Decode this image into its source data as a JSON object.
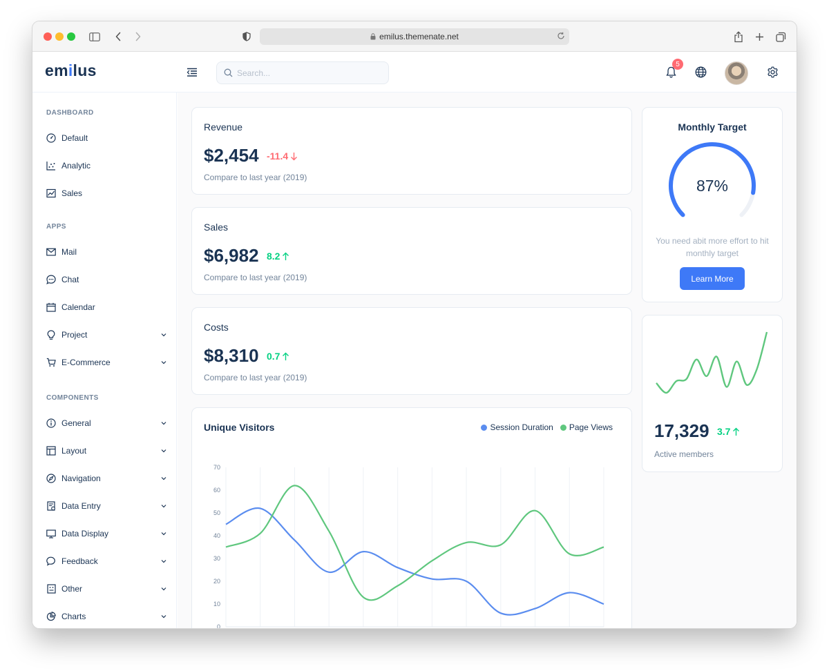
{
  "browser": {
    "url": "emilus.themenate.net"
  },
  "header": {
    "logo": "emilus",
    "search_placeholder": "Search...",
    "notification_count": "5",
    "icons": [
      "menu-fold-icon",
      "search-icon",
      "bell-icon",
      "globe-icon",
      "settings-icon"
    ]
  },
  "sidebar": {
    "groups": [
      {
        "title": "DASHBOARD",
        "items": [
          {
            "label": "Default",
            "icon": "dashboard-icon"
          },
          {
            "label": "Analytic",
            "icon": "dot-chart-icon"
          },
          {
            "label": "Sales",
            "icon": "line-chart-icon"
          }
        ]
      },
      {
        "title": "APPS",
        "items": [
          {
            "label": "Mail",
            "icon": "mail-icon"
          },
          {
            "label": "Chat",
            "icon": "message-icon"
          },
          {
            "label": "Calendar",
            "icon": "calendar-icon"
          },
          {
            "label": "Project",
            "icon": "bulb-icon"
          },
          {
            "label": "E-Commerce",
            "icon": "shopping-cart-icon"
          }
        ]
      },
      {
        "title": "COMPONENTS",
        "items": [
          {
            "label": "General",
            "icon": "info-circle-icon"
          },
          {
            "label": "Layout",
            "icon": "layout-icon"
          },
          {
            "label": "Navigation",
            "icon": "compass-icon"
          },
          {
            "label": "Data Entry",
            "icon": "file-done-icon"
          },
          {
            "label": "Data Display",
            "icon": "desktop-icon"
          },
          {
            "label": "Feedback",
            "icon": "comment-icon"
          },
          {
            "label": "Other",
            "icon": "robot-icon"
          },
          {
            "label": "Charts",
            "icon": "pie-chart-icon"
          }
        ]
      }
    ]
  },
  "stats": [
    {
      "title": "Revenue",
      "value": "$2,454",
      "change": "-11.4",
      "direction": "down",
      "subtitle": "Compare to last year (2019)"
    },
    {
      "title": "Sales",
      "value": "$6,982",
      "change": "8.2",
      "direction": "up",
      "subtitle": "Compare to last year (2019)"
    },
    {
      "title": "Costs",
      "value": "$8,310",
      "change": "0.7",
      "direction": "up",
      "subtitle": "Compare to last year (2019)"
    }
  ],
  "monthly_target": {
    "title": "Monthly Target",
    "percent_label": "87%",
    "progress": 0.87,
    "note": "You need abit more effort to hit monthly target",
    "button_label": "Learn More",
    "color": "#3e79f7",
    "track_color": "#eef1f6"
  },
  "members": {
    "value": "17,329",
    "change": "3.7",
    "label": "Active members",
    "color": "#5fc77e",
    "sparkline": [
      18,
      8,
      20,
      22,
      42,
      25,
      45,
      14,
      40,
      16,
      32,
      70
    ]
  },
  "colors": {
    "up": "#04d182",
    "down": "#ff6b72",
    "primary": "#3e79f7"
  },
  "chart_data": {
    "type": "line",
    "title": "Unique Visitors",
    "categories": [
      "",
      "",
      "",
      "",
      "",
      "",
      "",
      "",
      "",
      "",
      "",
      ""
    ],
    "ylim": [
      0,
      70
    ],
    "yticks": [
      0,
      10,
      20,
      30,
      40,
      50,
      60,
      70
    ],
    "grid": "vertical",
    "legend_position": "top-right",
    "series": [
      {
        "name": "Session Duration",
        "color": "#5b8def",
        "values": [
          45,
          52,
          38,
          24,
          33,
          26,
          21,
          20,
          6,
          8,
          15,
          10
        ]
      },
      {
        "name": "Page Views",
        "color": "#5fc77e",
        "values": [
          35,
          41,
          62,
          42,
          13,
          18,
          29,
          37,
          36,
          51,
          32,
          35
        ]
      }
    ]
  }
}
